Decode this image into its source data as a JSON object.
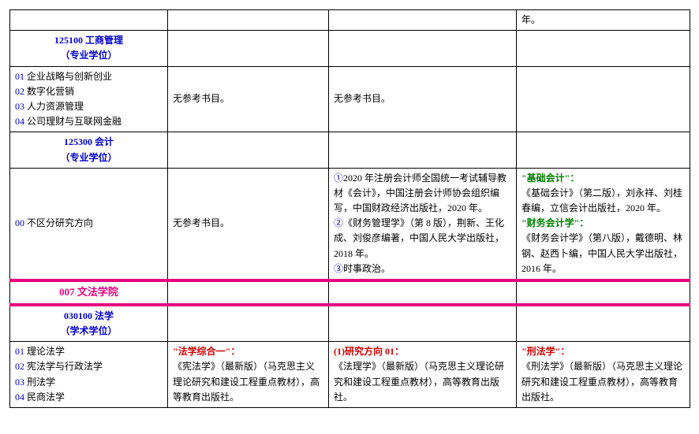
{
  "colors": {
    "text": "#000000",
    "blue": "#0000cc",
    "magenta": "#e6007e",
    "green": "#008000",
    "red": "#cc0000",
    "border": "#000000",
    "background": "#ffffff"
  },
  "r0_c4": "年。",
  "major_125100_l1": "125100 工商管理",
  "major_125100_l2": "（专业学位）",
  "dir_01_pre": "01 ",
  "dir_01": "企业战略与创新创业",
  "dir_02_pre": "02 ",
  "dir_02": "数字化营销",
  "dir_03_pre": "03 ",
  "dir_03": "人力资源管理",
  "dir_04_pre": "04 ",
  "dir_04": "公司理财与互联网金融",
  "no_ref": "无参考书目。",
  "major_125300_l1": "125300 会计",
  "major_125300_l2": "（专业学位）",
  "dir_00_pre": "00 ",
  "dir_00": "不区分研究方向",
  "acc_c3_1a": "①",
  "acc_c3_1b": "2020 年注册会计师全国统一考试辅导教材《会计》，中国注册会计师协会组织编写，中国财政经济出版社，2020 年。",
  "acc_c3_2a": "②",
  "acc_c3_2b": "《财务管理学》（第 8 版），荆新、王化成、刘俊彦编著，中国人民大学出版社，2018 年。",
  "acc_c3_3a": "③",
  "acc_c3_3b": "时事政治。",
  "acc_c4_h1": "\"基础会计\"：",
  "acc_c4_t1": "《基础会计》（第二版），刘永祥、刘桂春编，立信会计出版社，2020 年。",
  "acc_c4_h2": "\"财务会计学\"：",
  "acc_c4_t2": "《财务会计学》（第八版），戴德明、林钢、赵西卜编，中国人民大学出版社，2016 年。",
  "college_007": "007 文法学院",
  "major_030100_l1": "030100  法学",
  "major_030100_l2": "（学术学位）",
  "law_01_pre": "01 ",
  "law_01": "理论法学",
  "law_02_pre": "02 ",
  "law_02": "宪法学与行政法学",
  "law_03_pre": "03 ",
  "law_03": "刑法学",
  "law_04_pre": "04 ",
  "law_04": "民商法学",
  "law_c2_h": "\"法学综合一\"：",
  "law_c2_t": "《宪法学》（最新版）（马克思主义理论研究和建设工程重点教材），高等教育出版社。",
  "law_c3_h": "(1)研究方向 01：",
  "law_c3_t": "《法理学》（最新版）（马克思主义理论研究和建设工程重点教材），高等教育出版社。",
  "law_c4_h": "\"刑法学\"：",
  "law_c4_t": "《刑法学》（最新版）（马克思主义理论研究和建设工程重点教材），高等教育出版社。"
}
